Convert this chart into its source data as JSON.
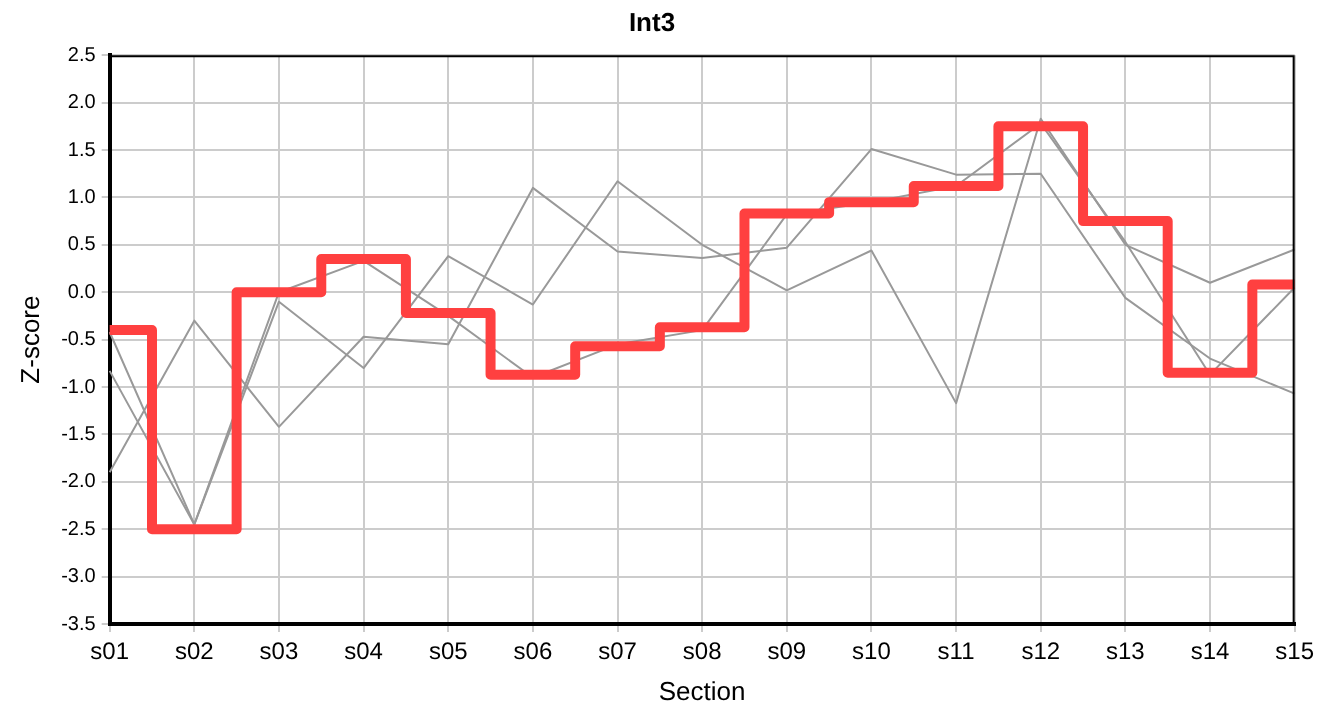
{
  "chart_data": {
    "type": "line",
    "title": "Int3",
    "xlabel": "Section",
    "ylabel": "Z-score",
    "categories": [
      "s01",
      "s02",
      "s03",
      "s04",
      "s05",
      "s06",
      "s07",
      "s08",
      "s09",
      "s10",
      "s11",
      "s12",
      "s13",
      "s14",
      "s15"
    ],
    "series": [
      {
        "color": "#999999",
        "values": [
          -0.83,
          -2.45,
          -0.1,
          -0.8,
          0.38,
          -0.13,
          1.17,
          0.5,
          0.02,
          0.44,
          -1.17,
          1.83,
          0.5,
          0.1,
          0.45
        ]
      },
      {
        "color": "#999999",
        "values": [
          -1.9,
          -0.3,
          -1.42,
          -0.47,
          -0.55,
          1.1,
          0.43,
          0.36,
          0.47,
          1.51,
          1.24,
          1.25,
          -0.06,
          -0.7,
          -1.07
        ]
      },
      {
        "color": "#999999",
        "values": [
          -0.42,
          -2.45,
          0.0,
          0.33,
          -0.25,
          -0.9,
          -0.55,
          -0.4,
          0.82,
          0.95,
          1.12,
          1.78,
          0.53,
          -0.87,
          0.05
        ]
      },
      {
        "type": "step",
        "color": "#ff4040",
        "values": [
          -0.4,
          -2.5,
          0.0,
          0.35,
          -0.22,
          -0.87,
          -0.57,
          -0.37,
          0.83,
          0.95,
          1.12,
          1.75,
          0.75,
          -0.85,
          0.08
        ]
      }
    ],
    "ylim": [
      -3.5,
      2.5
    ],
    "yticks": [
      {
        "value": -3.5,
        "label": "-3.5"
      },
      {
        "value": -3,
        "label": "-3.0"
      },
      {
        "value": -2.5,
        "label": "-2.5"
      },
      {
        "value": -2,
        "label": "-2.0"
      },
      {
        "value": -1.5,
        "label": "-1.5"
      },
      {
        "value": -1,
        "label": "-1.0"
      },
      {
        "value": -0.5,
        "label": "-0.5"
      },
      {
        "value": 0,
        "label": "0.0"
      },
      {
        "value": 0.5,
        "label": "0.5"
      },
      {
        "value": 1,
        "label": "1.0"
      },
      {
        "value": 1.5,
        "label": "1.5"
      },
      {
        "value": 2,
        "label": "2.0"
      },
      {
        "value": 2.5,
        "label": "2.5"
      }
    ],
    "grid": true,
    "marker": "none"
  }
}
